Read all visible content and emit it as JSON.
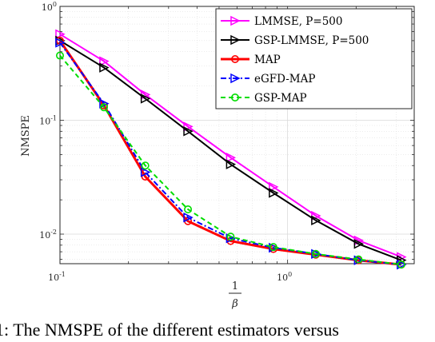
{
  "chart_data": {
    "type": "line",
    "xscale": "log",
    "yscale": "log",
    "xlim": [
      0.1,
      3.6
    ],
    "ylim": [
      0.0055,
      1
    ],
    "grid": true,
    "legend_position": "top-right",
    "ylabel": "NMSPE",
    "xlabel": {
      "numerator": "1",
      "denominator": "β"
    },
    "x_ticks": [
      {
        "base": "10",
        "exp": "-1",
        "value": 0.1
      },
      {
        "base": "10",
        "exp": "0",
        "value": 1
      }
    ],
    "y_ticks": [
      {
        "base": "10",
        "exp": "0",
        "value": 1
      },
      {
        "base": "10",
        "exp": "-1",
        "value": 0.1
      },
      {
        "base": "10",
        "exp": "-2",
        "value": 0.01
      }
    ],
    "x": [
      0.1,
      0.156,
      0.237,
      0.365,
      0.562,
      0.866,
      1.33,
      2.05,
      3.16
    ],
    "series": [
      {
        "name": "LMMSE, P=500",
        "color": "#ff00ff",
        "marker": "triangle-right",
        "dash": "solid",
        "values": [
          0.57,
          0.33,
          0.168,
          0.088,
          0.047,
          0.026,
          0.0145,
          0.0088,
          0.0063
        ]
      },
      {
        "name": "GSP-LMMSE, P=500",
        "color": "#000000",
        "marker": "triangle-right",
        "dash": "solid",
        "values": [
          0.5,
          0.29,
          0.155,
          0.08,
          0.041,
          0.023,
          0.0132,
          0.0082,
          0.0059
        ]
      },
      {
        "name": "MAP",
        "color": "#ff0000",
        "marker": "circle",
        "dash": "solid",
        "values": [
          0.5,
          0.135,
          0.032,
          0.013,
          0.0087,
          0.0074,
          0.0066,
          0.0059,
          0.0054
        ]
      },
      {
        "name": "eGFD-MAP",
        "color": "#0000ff",
        "marker": "triangle-right",
        "dash": "dashdot",
        "values": [
          0.48,
          0.14,
          0.035,
          0.014,
          0.0092,
          0.0076,
          0.0067,
          0.0059,
          0.0054
        ]
      },
      {
        "name": "GSP-MAP",
        "color": "#00dd00",
        "marker": "circle",
        "dash": "dashed",
        "values": [
          0.37,
          0.13,
          0.04,
          0.0165,
          0.0095,
          0.0077,
          0.0067,
          0.006,
          0.0054
        ]
      }
    ]
  },
  "caption": "1: The NMSPE of the different estimators versus"
}
